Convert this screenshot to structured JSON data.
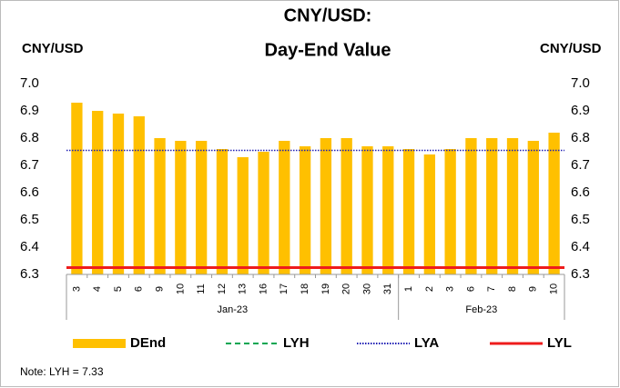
{
  "chart_data": {
    "type": "bar",
    "title": "CNY/USD:",
    "subtitle": "Day-End Value",
    "y_axis_label": "CNY/USD",
    "y2_axis_label": "CNY/USD",
    "note": "Note: LYH = 7.33",
    "categories": [
      "3",
      "4",
      "5",
      "6",
      "9",
      "10",
      "11",
      "12",
      "13",
      "16",
      "17",
      "18",
      "19",
      "20",
      "30",
      "31",
      "1",
      "2",
      "3",
      "6",
      "7",
      "8",
      "9",
      "10"
    ],
    "category_groups": [
      "Jan-23",
      "Jan-23",
      "Jan-23",
      "Jan-23",
      "Jan-23",
      "Jan-23",
      "Jan-23",
      "Jan-23",
      "Jan-23",
      "Jan-23",
      "Jan-23",
      "Jan-23",
      "Jan-23",
      "Jan-23",
      "Jan-23",
      "Jan-23",
      "Feb-23",
      "Feb-23",
      "Feb-23",
      "Feb-23",
      "Feb-23",
      "Feb-23",
      "Feb-23",
      "Feb-23"
    ],
    "series": [
      {
        "name": "DEnd",
        "color": "#ffc000",
        "values": [
          6.93,
          6.9,
          6.89,
          6.88,
          6.8,
          6.79,
          6.79,
          6.76,
          6.73,
          6.75,
          6.79,
          6.77,
          6.8,
          6.8,
          6.77,
          6.77,
          6.76,
          6.74,
          6.76,
          6.8,
          6.8,
          6.8,
          6.79,
          6.82
        ]
      }
    ],
    "reference_lines": [
      {
        "name": "LYH",
        "color": "#00a651",
        "style": "dashed",
        "value": 7.33
      },
      {
        "name": "LYA",
        "color": "#1f1fb4",
        "style": "dotted",
        "value": 6.755
      },
      {
        "name": "LYL",
        "color": "#ee1c1c",
        "style": "solid",
        "value": 6.325
      }
    ],
    "ylim": [
      6.3,
      7.0
    ],
    "yticks": [
      6.3,
      6.4,
      6.5,
      6.6,
      6.7,
      6.8,
      6.9,
      {
        "value": 7.0,
        "label": "7.0"
      }
    ],
    "y2lim": [
      6.3,
      7.0
    ],
    "y2ticks": [
      6.3,
      6.4,
      6.5,
      6.6,
      6.7,
      6.8,
      6.9,
      {
        "value": 7.0,
        "label": "7.0"
      }
    ],
    "grid": false
  }
}
